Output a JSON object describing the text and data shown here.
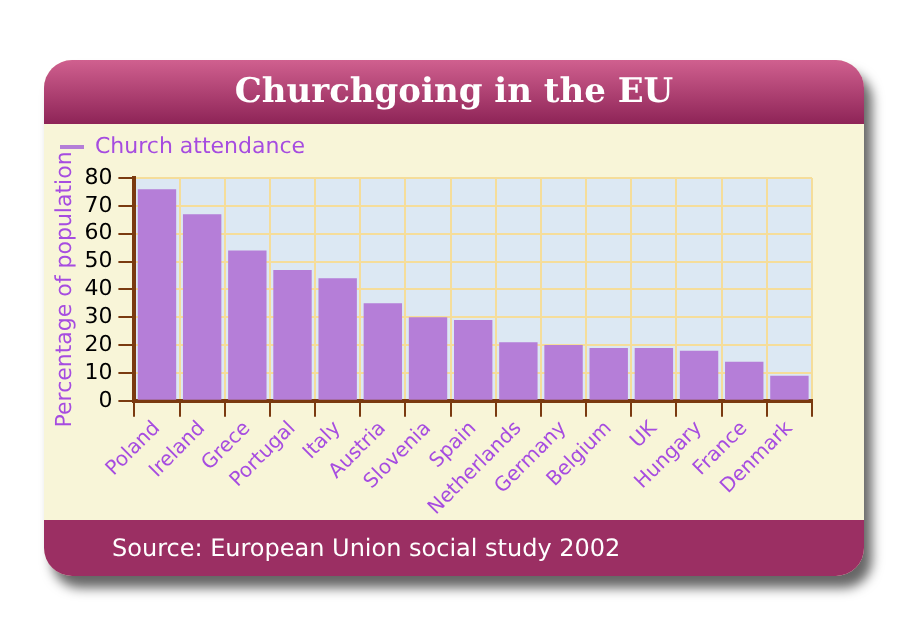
{
  "chart_data": {
    "type": "bar",
    "title": "Churchgoing in the EU",
    "ylabel": "Percentage of population",
    "categories": [
      "Poland",
      "Ireland",
      "Grece",
      "Portugal",
      "Italy",
      "Austria",
      "Slovenia",
      "Spain",
      "Netherlands",
      "Germany",
      "Belgium",
      "UK",
      "Hungary",
      "France",
      "Denmark"
    ],
    "series": [
      {
        "name": "Church attendance",
        "color": "#b57ed8",
        "values": [
          76,
          67,
          54,
          47,
          44,
          35,
          30,
          29,
          21,
          20,
          19,
          19,
          18,
          14,
          9
        ]
      }
    ],
    "ylim": [
      0,
      80
    ],
    "yticks": [
      0,
      10,
      20,
      30,
      40,
      50,
      60,
      70,
      80
    ],
    "grid": true,
    "legend": "top left",
    "annotations": [
      "Source: European Union social study 2002"
    ]
  }
}
